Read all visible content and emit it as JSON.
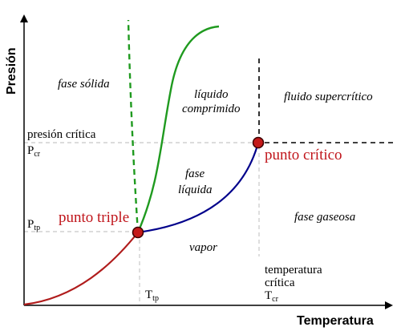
{
  "axes": {
    "x_title": "Temperatura",
    "y_title": "Presión"
  },
  "regions": {
    "solid": "fase sólida",
    "compressed_liquid_line1": "líquido",
    "compressed_liquid_line2": "comprimido",
    "supercritical": "fluido supercrítico",
    "liquid_line1": "fase",
    "liquid_line2": "líquida",
    "gas": "fase gaseosa",
    "vapor": "vapor"
  },
  "points": {
    "triple": "punto triple",
    "critical": "punto crítico"
  },
  "labels": {
    "critical_pressure": "presión crítica",
    "p_cr_main": "P",
    "p_cr_sub": "cr",
    "p_tp_main": "P",
    "p_tp_sub": "tp",
    "t_tp_main": "T",
    "t_tp_sub": "tp",
    "critical_temp_line1": "temperatura",
    "critical_temp_line2": "crítica",
    "t_cr_main": "T",
    "t_cr_sub": "cr"
  },
  "colors": {
    "sublimation_curve": "#b01c1c",
    "melting_curve": "#1f9a1f",
    "vaporization_curve": "#00008b",
    "point_fill": "#c41a1a",
    "label_red": "#c0151b"
  }
}
